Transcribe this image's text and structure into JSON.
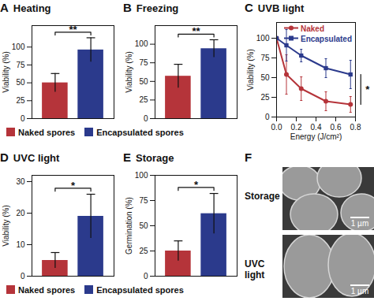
{
  "chart_data": [
    {
      "panel": "A",
      "type": "bar",
      "title": "Heating",
      "categories": [
        "Naked spores",
        "Encapsulated spores"
      ],
      "values": [
        50,
        96
      ],
      "errors": [
        13,
        17
      ],
      "colors": [
        "#b5343a",
        "#2b3a8c"
      ],
      "ylabel": "Viability (%)",
      "ylim": [
        0,
        130
      ],
      "yticks": [
        0,
        25,
        50,
        75,
        100
      ],
      "significance": "**",
      "tick_labels": "y",
      "grid": false,
      "legend": "bottom"
    },
    {
      "panel": "B",
      "type": "bar",
      "title": "Freezing",
      "categories": [
        "Naked spores",
        "Encapsulated spores"
      ],
      "values": [
        57,
        94
      ],
      "errors": [
        16,
        12
      ],
      "colors": [
        "#b5343a",
        "#2b3a8c"
      ],
      "ylabel": "Viability (%)",
      "ylim": [
        0,
        125
      ],
      "yticks": [
        0,
        25,
        50,
        75,
        100
      ],
      "significance": "**",
      "tick_labels": "y",
      "grid": false
    },
    {
      "panel": "C",
      "type": "line",
      "title": "UVB light",
      "x": [
        0,
        0.1,
        0.25,
        0.5,
        0.75
      ],
      "series": [
        {
          "name": "Naked",
          "color": "#b5343a",
          "marker": "circle",
          "values": [
            100,
            54,
            36,
            20,
            16
          ],
          "errors": [
            0,
            25,
            15,
            12,
            10
          ]
        },
        {
          "name": "Encapsulated",
          "color": "#2b3a8c",
          "marker": "square",
          "values": [
            100,
            91,
            78,
            62,
            54
          ],
          "errors": [
            0,
            20,
            8,
            12,
            18
          ]
        }
      ],
      "xlabel": "Energy (J/cm²)",
      "ylabel": "Viability (%)",
      "xlim": [
        0,
        0.8
      ],
      "xticks": [
        {
          "value": 0,
          "label": "0.0"
        },
        0.2,
        0.4,
        0.6,
        0.8
      ],
      "ylim": [
        0,
        120
      ],
      "yticks": [
        0,
        25,
        50,
        75,
        100
      ],
      "significance": "*",
      "legend": "top-right",
      "grid": false
    },
    {
      "panel": "D",
      "type": "bar",
      "title": "UVC light",
      "categories": [
        "Naked spores",
        "Encapsulated spores"
      ],
      "values": [
        5,
        19
      ],
      "errors": [
        2.5,
        7
      ],
      "colors": [
        "#b5343a",
        "#2b3a8c"
      ],
      "ylabel": "Viability (%)",
      "ylim": [
        0,
        32
      ],
      "yticks": [
        0,
        10,
        20,
        30
      ],
      "significance": "*",
      "tick_labels": "y",
      "grid": false,
      "legend": "bottom"
    },
    {
      "panel": "E",
      "type": "bar",
      "title": "Storage",
      "categories": [
        "Naked spores",
        "Encapsulated spores"
      ],
      "values": [
        25,
        62
      ],
      "errors": [
        10,
        20
      ],
      "colors": [
        "#b5343a",
        "#2b3a8c"
      ],
      "ylabel": "Germination (%)",
      "ylim": [
        0,
        100
      ],
      "yticks": [
        0,
        25,
        50,
        75,
        100
      ],
      "significance": "*",
      "tick_labels": "y",
      "grid": false
    }
  ],
  "panel_f": {
    "panel": "F",
    "images": [
      {
        "label": "Storage",
        "scale_bar": "1 µm"
      },
      {
        "label": "UVC light",
        "scale_bar": "1 µm"
      }
    ]
  }
}
